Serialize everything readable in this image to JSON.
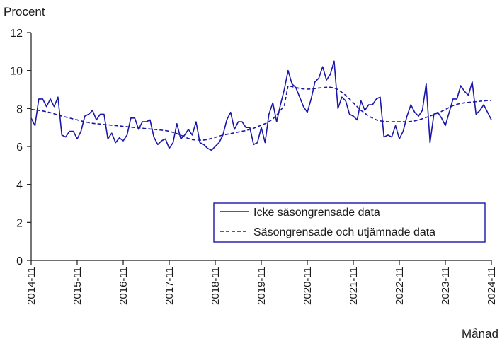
{
  "chart_data": {
    "type": "line",
    "ylabel": "Procent",
    "xlabel": "Månad",
    "ylim": [
      0,
      12
    ],
    "yticks": [
      0,
      2,
      4,
      6,
      8,
      10,
      12
    ],
    "xticks": [
      "2014-11",
      "2015-11",
      "2016-11",
      "2017-11",
      "2018-11",
      "2019-11",
      "2020-11",
      "2021-11",
      "2022-11",
      "2023-11",
      "2024-11"
    ],
    "x_start": "2014-11",
    "x_end": "2024-11",
    "grid": false,
    "legend_position": "bottom-right",
    "colors": {
      "series": "#1a17a8",
      "axis": "#1a1a1a"
    },
    "series": [
      {
        "name": "Icke säsongrensade data",
        "style": "solid",
        "values": [
          7.5,
          7.1,
          8.5,
          8.5,
          8.1,
          8.5,
          8.1,
          8.6,
          6.6,
          6.5,
          6.8,
          6.8,
          6.4,
          6.8,
          7.6,
          7.7,
          7.9,
          7.4,
          7.7,
          7.7,
          6.4,
          6.7,
          6.2,
          6.45,
          6.3,
          6.6,
          7.5,
          7.5,
          6.9,
          7.3,
          7.3,
          7.4,
          6.5,
          6.1,
          6.3,
          6.4,
          5.9,
          6.2,
          7.2,
          6.4,
          6.6,
          6.9,
          6.6,
          7.3,
          6.2,
          6.1,
          5.9,
          5.8,
          6.0,
          6.2,
          6.6,
          7.4,
          7.8,
          6.9,
          7.3,
          7.3,
          7.0,
          7.0,
          6.1,
          6.2,
          7.0,
          6.2,
          7.7,
          8.3,
          7.3,
          8.2,
          9.0,
          10.0,
          9.3,
          9.1,
          8.6,
          8.1,
          7.8,
          8.5,
          9.4,
          9.6,
          10.2,
          9.5,
          9.8,
          10.5,
          8.0,
          8.6,
          8.4,
          7.7,
          7.6,
          7.4,
          8.4,
          7.9,
          8.2,
          8.2,
          8.5,
          8.6,
          6.5,
          6.6,
          6.5,
          7.1,
          6.4,
          6.8,
          7.6,
          8.2,
          7.8,
          7.6,
          7.9,
          9.3,
          6.2,
          7.7,
          7.8,
          7.5,
          7.1,
          7.8,
          8.5,
          8.5,
          9.2,
          8.9,
          8.7,
          9.4,
          7.7,
          7.9,
          8.2,
          7.8,
          7.4
        ]
      },
      {
        "name": "Säsongrensade och utjämnade data",
        "style": "dashed",
        "values": [
          7.95,
          7.93,
          7.9,
          7.87,
          7.83,
          7.78,
          7.72,
          7.66,
          7.6,
          7.55,
          7.5,
          7.45,
          7.4,
          7.35,
          7.3,
          7.26,
          7.22,
          7.2,
          7.18,
          7.16,
          7.14,
          7.12,
          7.1,
          7.08,
          7.06,
          7.04,
          7.02,
          7.0,
          6.98,
          6.96,
          6.94,
          6.92,
          6.9,
          6.88,
          6.86,
          6.84,
          6.8,
          6.74,
          6.68,
          6.6,
          6.5,
          6.42,
          6.36,
          6.34,
          6.33,
          6.34,
          6.37,
          6.42,
          6.48,
          6.54,
          6.6,
          6.64,
          6.68,
          6.72,
          6.76,
          6.8,
          6.84,
          6.9,
          6.96,
          7.04,
          7.12,
          7.2,
          7.3,
          7.45,
          7.65,
          7.9,
          8.15,
          9.2,
          9.15,
          9.1,
          9.06,
          9.03,
          9.02,
          9.03,
          9.05,
          9.08,
          9.1,
          9.12,
          9.12,
          9.08,
          9.0,
          8.85,
          8.7,
          8.5,
          8.3,
          8.1,
          7.9,
          7.75,
          7.6,
          7.5,
          7.4,
          7.35,
          7.32,
          7.3,
          7.3,
          7.3,
          7.3,
          7.3,
          7.3,
          7.32,
          7.35,
          7.4,
          7.46,
          7.53,
          7.6,
          7.68,
          7.76,
          7.85,
          7.95,
          8.05,
          8.15,
          8.22,
          8.27,
          8.3,
          8.32,
          8.34,
          8.36,
          8.38,
          8.4,
          8.42,
          8.43
        ]
      }
    ]
  }
}
